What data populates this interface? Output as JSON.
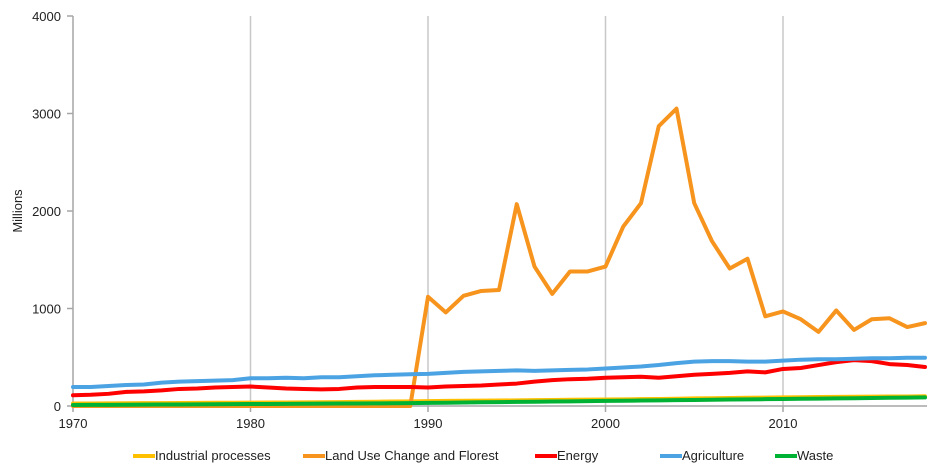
{
  "chart_data": {
    "type": "line",
    "title": "",
    "xlabel": "",
    "ylabel": "Millions",
    "xlim": [
      1970,
      2018
    ],
    "ylim": [
      0,
      4000
    ],
    "x_ticks": [
      1970,
      1980,
      1990,
      2000,
      2010
    ],
    "y_ticks": [
      0,
      1000,
      2000,
      3000,
      4000
    ],
    "grid": "vertical",
    "legend_position": "bottom",
    "x": [
      1970,
      1971,
      1972,
      1973,
      1974,
      1975,
      1976,
      1977,
      1978,
      1979,
      1980,
      1981,
      1982,
      1983,
      1984,
      1985,
      1986,
      1987,
      1988,
      1989,
      1990,
      1991,
      1992,
      1993,
      1994,
      1995,
      1996,
      1997,
      1998,
      1999,
      2000,
      2001,
      2002,
      2003,
      2004,
      2005,
      2006,
      2007,
      2008,
      2009,
      2010,
      2011,
      2012,
      2013,
      2014,
      2015,
      2016,
      2017,
      2018
    ],
    "series": [
      {
        "name": "Industrial processes",
        "color": "#FFC000",
        "values": [
          25,
          26,
          27,
          28,
          29,
          30,
          31,
          32,
          33,
          34,
          35,
          36,
          36,
          37,
          38,
          40,
          42,
          44,
          46,
          48,
          50,
          52,
          54,
          55,
          56,
          58,
          60,
          62,
          64,
          65,
          66,
          68,
          70,
          72,
          75,
          78,
          80,
          82,
          84,
          86,
          88,
          90,
          92,
          94,
          95,
          96,
          97,
          98,
          100
        ]
      },
      {
        "name": "Land Use Change and Florest",
        "color": "#F7941D",
        "values": [
          0,
          0,
          0,
          0,
          0,
          0,
          0,
          0,
          0,
          0,
          0,
          0,
          0,
          0,
          0,
          0,
          0,
          0,
          0,
          0,
          1120,
          960,
          1130,
          1180,
          1190,
          2070,
          1430,
          1150,
          1380,
          1380,
          1430,
          1840,
          2080,
          2870,
          3050,
          2080,
          1690,
          1410,
          1510,
          920,
          970,
          890,
          760,
          980,
          780,
          890,
          900,
          810,
          850
        ]
      },
      {
        "name": "Energy",
        "color": "#FF0000",
        "values": [
          110,
          115,
          125,
          145,
          150,
          160,
          175,
          180,
          190,
          195,
          200,
          190,
          180,
          175,
          170,
          175,
          190,
          195,
          195,
          195,
          190,
          200,
          205,
          210,
          220,
          230,
          250,
          265,
          275,
          280,
          290,
          295,
          300,
          290,
          305,
          320,
          330,
          340,
          355,
          345,
          380,
          390,
          420,
          450,
          470,
          460,
          430,
          420,
          400
        ]
      },
      {
        "name": "Agriculture",
        "color": "#4BA3E3",
        "values": [
          195,
          195,
          205,
          215,
          220,
          240,
          250,
          255,
          260,
          265,
          285,
          285,
          290,
          285,
          295,
          295,
          305,
          315,
          320,
          325,
          330,
          340,
          350,
          355,
          360,
          365,
          360,
          365,
          370,
          375,
          385,
          395,
          405,
          420,
          440,
          455,
          460,
          460,
          455,
          455,
          465,
          475,
          480,
          480,
          485,
          490,
          490,
          495,
          495
        ]
      },
      {
        "name": "Waste",
        "color": "#00B233",
        "values": [
          10,
          11,
          12,
          13,
          14,
          15,
          16,
          17,
          18,
          19,
          20,
          21,
          22,
          23,
          24,
          25,
          26,
          27,
          28,
          30,
          32,
          34,
          36,
          38,
          40,
          42,
          44,
          46,
          48,
          50,
          52,
          54,
          56,
          58,
          60,
          62,
          64,
          66,
          68,
          70,
          72,
          74,
          76,
          78,
          80,
          82,
          84,
          86,
          88
        ]
      }
    ]
  }
}
